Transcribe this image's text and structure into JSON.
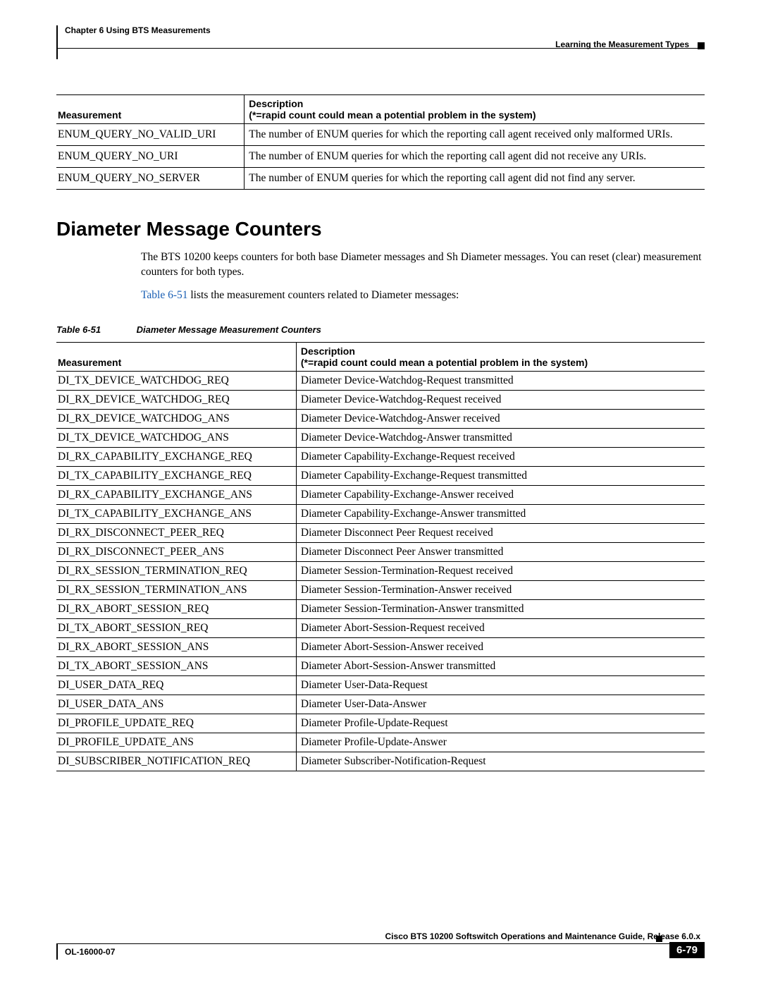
{
  "header": {
    "chapter": "Chapter 6    Using BTS Measurements",
    "section": "Learning the Measurement Types"
  },
  "table1": {
    "col1_header": "Measurement",
    "col2_header_line1": "Description",
    "col2_header_line2": "(*=rapid count could mean a potential problem in the system)",
    "rows": [
      {
        "m": "ENUM_QUERY_NO_VALID_URI",
        "d": "The number of ENUM queries for which the reporting call agent received only malformed URIs."
      },
      {
        "m": "ENUM_QUERY_NO_URI",
        "d": "The number of ENUM queries for which the reporting call agent did not receive any URIs."
      },
      {
        "m": "ENUM_QUERY_NO_SERVER",
        "d": "The number of ENUM queries for which the reporting call agent did not find any server."
      }
    ]
  },
  "section_heading": "Diameter Message Counters",
  "para1": "The BTS 10200 keeps counters for both base Diameter messages and Sh Diameter messages. You can reset (clear) measurement counters for both types.",
  "para2_link": "Table 6-51",
  "para2_rest": " lists the measurement counters related to Diameter messages:",
  "caption": {
    "num": "Table 6-51",
    "title": "Diameter Message Measurement Counters"
  },
  "table2": {
    "col1_header": "Measurement",
    "col2_header_line1": "Description",
    "col2_header_line2": "(*=rapid count could mean a potential problem in the system)",
    "rows": [
      {
        "m": "DI_TX_DEVICE_WATCHDOG_REQ",
        "d": "Diameter Device-Watchdog-Request transmitted"
      },
      {
        "m": "DI_RX_DEVICE_WATCHDOG_REQ",
        "d": "Diameter Device-Watchdog-Request received"
      },
      {
        "m": "DI_RX_DEVICE_WATCHDOG_ANS",
        "d": "Diameter Device-Watchdog-Answer received"
      },
      {
        "m": "DI_TX_DEVICE_WATCHDOG_ANS",
        "d": "Diameter Device-Watchdog-Answer transmitted"
      },
      {
        "m": "DI_RX_CAPABILITY_EXCHANGE_REQ",
        "d": "Diameter Capability-Exchange-Request received"
      },
      {
        "m": "DI_TX_CAPABILITY_EXCHANGE_REQ",
        "d": "Diameter Capability-Exchange-Request transmitted"
      },
      {
        "m": "DI_RX_CAPABILITY_EXCHANGE_ANS",
        "d": "Diameter Capability-Exchange-Answer received"
      },
      {
        "m": "DI_TX_CAPABILITY_EXCHANGE_ANS",
        "d": "Diameter Capability-Exchange-Answer transmitted"
      },
      {
        "m": "DI_RX_DISCONNECT_PEER_REQ",
        "d": "Diameter Disconnect Peer Request received"
      },
      {
        "m": "DI_RX_DISCONNECT_PEER_ANS",
        "d": "Diameter Disconnect Peer Answer transmitted"
      },
      {
        "m": "DI_RX_SESSION_TERMINATION_REQ",
        "d": "Diameter Session-Termination-Request received"
      },
      {
        "m": "DI_RX_SESSION_TERMINATION_ANS",
        "d": "Diameter Session-Termination-Answer received"
      },
      {
        "m": "DI_RX_ABORT_SESSION_REQ",
        "d": "Diameter Session-Termination-Answer transmitted"
      },
      {
        "m": "DI_TX_ABORT_SESSION_REQ",
        "d": "Diameter Abort-Session-Request received"
      },
      {
        "m": "DI_RX_ABORT_SESSION_ANS",
        "d": "Diameter Abort-Session-Answer received"
      },
      {
        "m": "DI_TX_ABORT_SESSION_ANS",
        "d": "Diameter Abort-Session-Answer transmitted"
      },
      {
        "m": "DI_USER_DATA_REQ",
        "d": "Diameter User-Data-Request"
      },
      {
        "m": "DI_USER_DATA_ANS",
        "d": "Diameter User-Data-Answer"
      },
      {
        "m": "DI_PROFILE_UPDATE_REQ",
        "d": "Diameter Profile-Update-Request"
      },
      {
        "m": "DI_PROFILE_UPDATE_ANS",
        "d": "Diameter Profile-Update-Answer"
      },
      {
        "m": "DI_SUBSCRIBER_NOTIFICATION_REQ",
        "d": "Diameter Subscriber-Notification-Request"
      }
    ]
  },
  "footer": {
    "guide": "Cisco BTS 10200 Softswitch Operations and Maintenance Guide, Release 6.0.x",
    "docnum": "OL-16000-07",
    "pagenum": "6-79"
  },
  "layout": {
    "t1_col1_width": "29%",
    "t2_col1_width": "37%"
  }
}
